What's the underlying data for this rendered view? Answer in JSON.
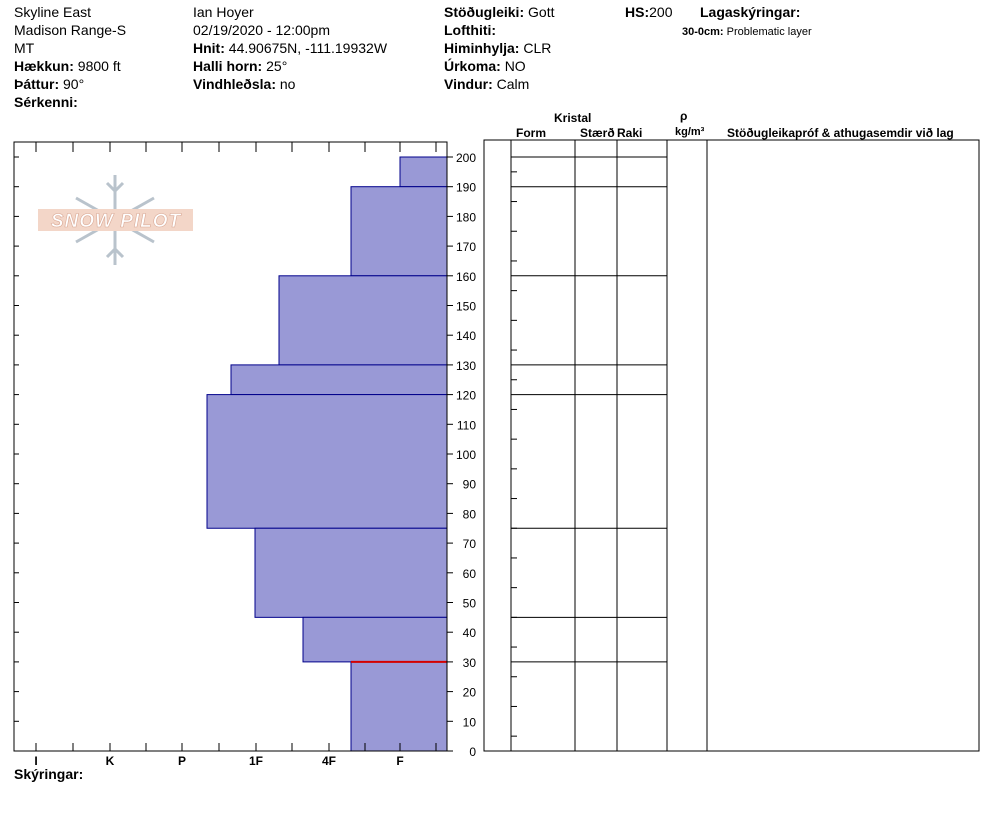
{
  "header": {
    "col1": {
      "location": "Skyline East",
      "range": "Madison Range-S",
      "state": "MT",
      "elevation_label": "Hækkun:",
      "elevation_value": "9800 ft",
      "aspect_label": "Þáttur:",
      "aspect_value": "90°",
      "features_label": "Sérkenni:"
    },
    "col2": {
      "observer": "Ian Hoyer",
      "datetime": "02/19/2020 - 12:00pm",
      "coords_label": "Hnit:",
      "coords_value": "44.90675N, -111.19932W",
      "slope_label": "Halli horn:",
      "slope_value": "25°",
      "wind_loading_label": "Vindhleðsla:",
      "wind_loading_value": "no"
    },
    "col3": {
      "stability_label": "Stöðugleiki:",
      "stability_value": "Gott",
      "air_temp_label": "Lofthiti:",
      "air_temp_value": "",
      "sky_label": "Himinhylja:",
      "sky_value": "CLR",
      "precip_label": "Úrkoma:",
      "precip_value": "NO",
      "wind_label": "Vindur:",
      "wind_value": "Calm"
    },
    "col4": {
      "hs_label": "HS:",
      "hs_value": "200",
      "layer_notes_label": "Lagaskýringar:",
      "layer_note_range": "30-0cm:",
      "layer_note_text": "Problematic layer"
    }
  },
  "columns": {
    "kristal": "Kristal",
    "form": "Form",
    "size": "Stærð",
    "moisture": "Raki",
    "rho": "ρ",
    "density_unit": "kg/m³",
    "stability_tests": "Stöðugleikapróf & athugasemdir við lag"
  },
  "hardness_ticks": [
    "I",
    "K",
    "P",
    "1F",
    "4F",
    "F"
  ],
  "footer": {
    "notes_label": "Skýringar:"
  },
  "watermark": {
    "text": "SNOW PILOT"
  },
  "colors": {
    "layer_fill": "#9999d6",
    "layer_stroke": "#00008b",
    "problem_layer": "#d40000"
  },
  "chart_data": {
    "type": "bar",
    "title": "",
    "ylabel": "",
    "ylim": [
      0,
      200
    ],
    "y_ticks": [
      0,
      10,
      20,
      30,
      40,
      50,
      60,
      70,
      80,
      90,
      100,
      110,
      120,
      130,
      140,
      150,
      160,
      170,
      180,
      190,
      200
    ],
    "x_categories": [
      "I",
      "K",
      "P",
      "1F",
      "4F",
      "F"
    ],
    "layers": [
      {
        "bottom": 190,
        "top": 200,
        "hardness": "F"
      },
      {
        "bottom": 160,
        "top": 190,
        "hardness": "4F-F"
      },
      {
        "bottom": 130,
        "top": 160,
        "hardness": "1F-4F"
      },
      {
        "bottom": 120,
        "top": 130,
        "hardness": "P-1F"
      },
      {
        "bottom": 75,
        "top": 120,
        "hardness": "P-1F"
      },
      {
        "bottom": 45,
        "top": 75,
        "hardness": "1F"
      },
      {
        "bottom": 30,
        "top": 45,
        "hardness": "1F-4F"
      },
      {
        "bottom": 0,
        "top": 30,
        "hardness": "4F-F"
      }
    ],
    "problem_layer_depth": 30
  }
}
